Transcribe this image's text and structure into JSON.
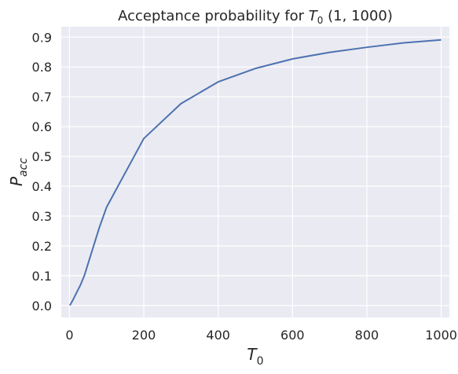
{
  "chart_data": {
    "type": "line",
    "title": {
      "prefix": "Acceptance probability for ",
      "symbol": "T",
      "subscript": "0",
      "suffix": " (1, 1000)"
    },
    "xlabel": {
      "symbol": "T",
      "subscript": "0"
    },
    "ylabel": {
      "symbol": "P",
      "subscript": "acc"
    },
    "xlim": [
      -22,
      1022
    ],
    "ylim": [
      -0.04,
      0.935
    ],
    "xticks": [
      0,
      200,
      400,
      600,
      800,
      1000
    ],
    "yticks": [
      0.0,
      0.1,
      0.2,
      0.3,
      0.4,
      0.5,
      0.6,
      0.7,
      0.8,
      0.9
    ],
    "ytick_labels": [
      "0.0",
      "0.1",
      "0.2",
      "0.3",
      "0.4",
      "0.5",
      "0.6",
      "0.7",
      "0.8",
      "0.9"
    ],
    "grid": true,
    "background_color": "#eaeaf2",
    "grid_color": "#ffffff",
    "series": [
      {
        "color": "#4c72b0",
        "x": [
          1,
          10,
          20,
          30,
          40,
          50,
          60,
          70,
          80,
          90,
          100,
          200,
          300,
          400,
          500,
          600,
          700,
          800,
          900,
          1000
        ],
        "y": [
          0.0,
          0.02,
          0.045,
          0.07,
          0.1,
          0.14,
          0.18,
          0.22,
          0.26,
          0.295,
          0.33,
          0.56,
          0.677,
          0.75,
          0.795,
          0.827,
          0.849,
          0.866,
          0.881,
          0.891
        ]
      }
    ]
  }
}
